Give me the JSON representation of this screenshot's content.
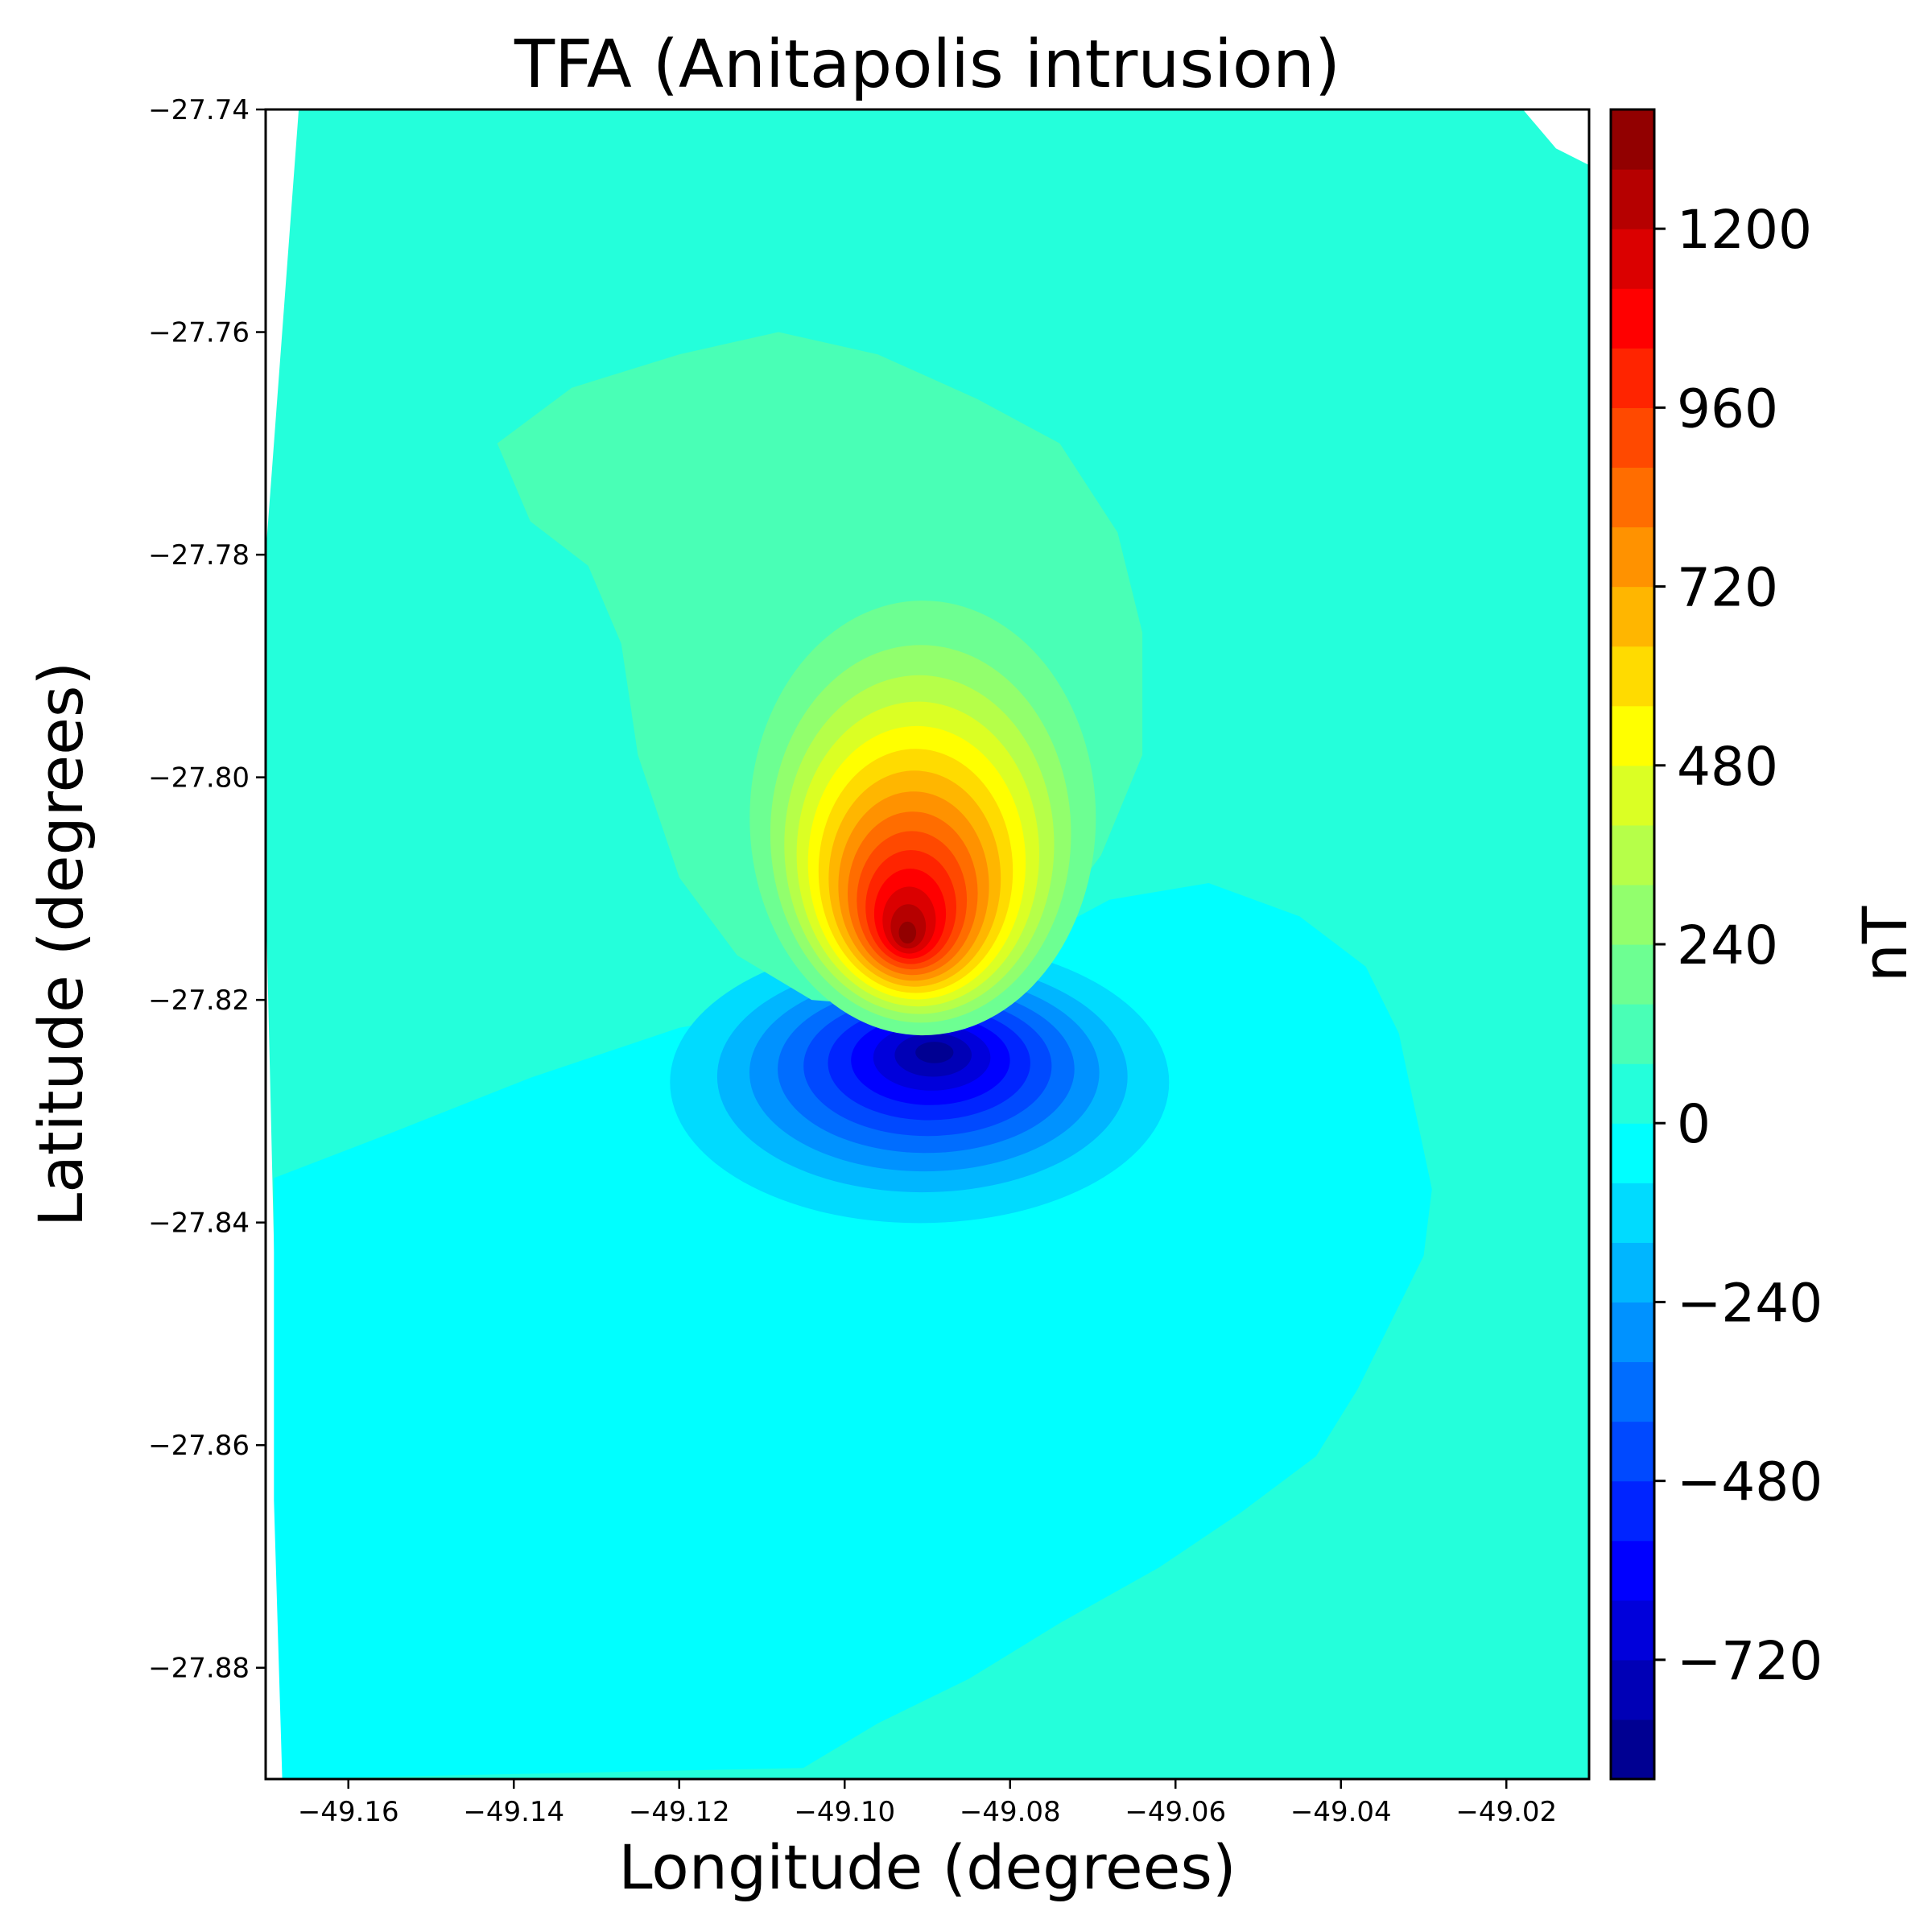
{
  "chart_data": {
    "type": "contourf",
    "title": "TFA (Anitapolis intrusion)",
    "xlabel": "Longitude (degrees)",
    "ylabel": "Latitude (degrees)",
    "xlim": [
      -49.17,
      -49.01
    ],
    "ylim": [
      -27.89,
      -27.74
    ],
    "x_ticks": [
      -49.16,
      -49.14,
      -49.12,
      -49.1,
      -49.08,
      -49.06,
      -49.04,
      -49.02
    ],
    "x_tick_labels": [
      "−49.16",
      "−49.14",
      "−49.12",
      "−49.10",
      "−49.08",
      "−49.06",
      "−49.04",
      "−49.02"
    ],
    "y_ticks": [
      -27.74,
      -27.76,
      -27.78,
      -27.8,
      -27.82,
      -27.84,
      -27.86,
      -27.88
    ],
    "y_tick_labels": [
      "−27.74",
      "−27.76",
      "−27.78",
      "−27.80",
      "−27.82",
      "−27.84",
      "−27.86",
      "−27.88"
    ],
    "colormap": "jet",
    "colorbar": {
      "label": "nT",
      "range": [
        -880,
        1360
      ],
      "level_step": 80,
      "ticks": [
        1200,
        960,
        720,
        480,
        240,
        0,
        -240,
        -480,
        -720
      ],
      "tick_labels": [
        "1200",
        "960",
        "720",
        "480",
        "240",
        "0",
        "−240",
        "−480",
        "−720"
      ]
    },
    "field": {
      "background_nT": 0,
      "positive_pole": {
        "lon": -49.0925,
        "lat": -27.8145,
        "peak_nT": 1360
      },
      "negative_pole": {
        "lon": -49.089,
        "lat": -27.8245,
        "trough_nT": -880
      }
    },
    "grid": false,
    "legend": "none"
  }
}
